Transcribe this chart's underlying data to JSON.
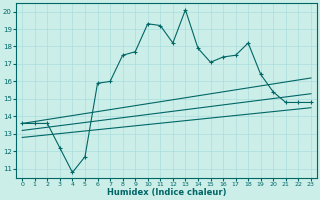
{
  "xlabel": "Humidex (Indice chaleur)",
  "bg_color": "#cceee8",
  "line_color": "#006666",
  "grid_color": "#aadddd",
  "xlim": [
    -0.5,
    23.5
  ],
  "ylim": [
    10.5,
    20.5
  ],
  "xticks": [
    0,
    1,
    2,
    3,
    4,
    5,
    6,
    7,
    8,
    9,
    10,
    11,
    12,
    13,
    14,
    15,
    16,
    17,
    18,
    19,
    20,
    21,
    22,
    23
  ],
  "yticks": [
    11,
    12,
    13,
    14,
    15,
    16,
    17,
    18,
    19,
    20
  ],
  "main_line_x": [
    0,
    1,
    2,
    3,
    4,
    5,
    6,
    7,
    8,
    9,
    10,
    11,
    12,
    13,
    14,
    15,
    16,
    17,
    18,
    19,
    20,
    21,
    22,
    23
  ],
  "main_line_y": [
    13.6,
    13.6,
    13.6,
    12.2,
    10.8,
    11.7,
    15.9,
    16.0,
    17.5,
    17.7,
    19.3,
    19.2,
    18.2,
    20.1,
    17.9,
    17.1,
    17.4,
    17.5,
    18.2,
    16.4,
    15.4,
    14.8,
    14.8,
    14.8
  ],
  "reg_line1_x": [
    0,
    23
  ],
  "reg_line1_y": [
    13.6,
    16.2
  ],
  "reg_line2_x": [
    0,
    23
  ],
  "reg_line2_y": [
    13.2,
    15.3
  ],
  "reg_line3_x": [
    0,
    23
  ],
  "reg_line3_y": [
    12.8,
    14.5
  ]
}
